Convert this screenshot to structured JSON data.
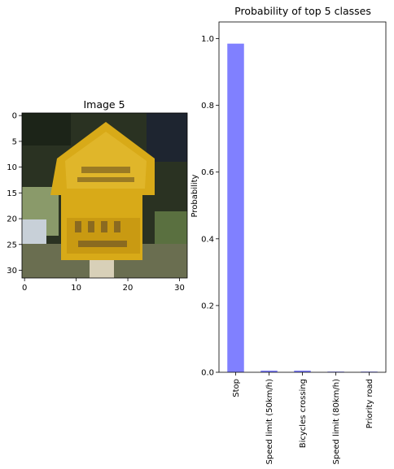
{
  "left_panel": {
    "title": "Image 5",
    "xticks": [
      0,
      10,
      20,
      30
    ],
    "yticks": [
      0,
      5,
      10,
      15,
      20,
      25,
      30
    ],
    "xlim": [
      -0.5,
      31.5
    ],
    "ylim": [
      31.5,
      -0.5
    ]
  },
  "chart_data": {
    "type": "bar",
    "title": "Probability of top 5 classes",
    "xlabel": "",
    "ylabel": "Probability",
    "categories": [
      "Stop",
      "Speed limit (50km/h)",
      "Bicycles crossing",
      "Speed limit (80km/h)",
      "Priority road"
    ],
    "values": [
      0.985,
      0.005,
      0.005,
      0.002,
      0.002
    ],
    "ylim": [
      0,
      1.0
    ],
    "yticks": [
      0.0,
      0.2,
      0.4,
      0.6,
      0.8,
      1.0
    ],
    "bar_color": "#8080ff",
    "grid": false
  }
}
